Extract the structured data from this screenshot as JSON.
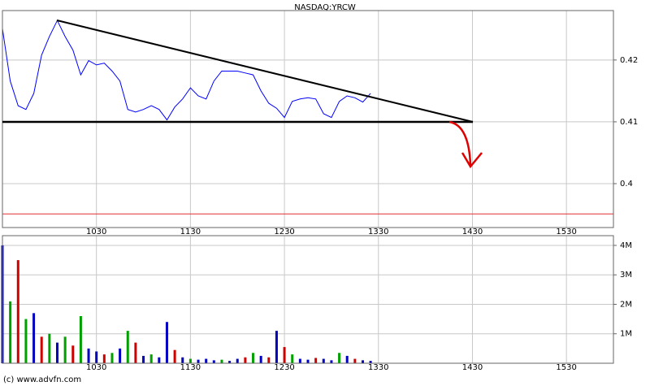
{
  "chart_data": [
    {
      "type": "line",
      "title": "NASDAQ:YRCW",
      "color": "#0000ff",
      "x": [
        570,
        575,
        580,
        585,
        590,
        595,
        600,
        605,
        610,
        615,
        620,
        625,
        630,
        635,
        640,
        645,
        650,
        655,
        660,
        665,
        670,
        675,
        680,
        685,
        690,
        695,
        700,
        705,
        710,
        715,
        720,
        725,
        730,
        735,
        740,
        745,
        750,
        755,
        760,
        765,
        770,
        775,
        780,
        785,
        790,
        795,
        800,
        805
      ],
      "values": [
        0.4251,
        0.4166,
        0.4126,
        0.412,
        0.4146,
        0.4208,
        0.4238,
        0.4264,
        0.4238,
        0.4216,
        0.4176,
        0.4199,
        0.4192,
        0.4195,
        0.4182,
        0.4166,
        0.412,
        0.4116,
        0.412,
        0.4126,
        0.412,
        0.4103,
        0.4124,
        0.4137,
        0.4155,
        0.4142,
        0.4137,
        0.4166,
        0.4182,
        0.4182,
        0.4182,
        0.4179,
        0.4176,
        0.415,
        0.413,
        0.4122,
        0.4107,
        0.4133,
        0.4137,
        0.4139,
        0.4137,
        0.4113,
        0.4107,
        0.4133,
        0.4142,
        0.4139,
        0.4132,
        0.4146
      ],
      "reference_line": {
        "value": 0.3951,
        "color": "#e03030"
      },
      "xlim": [
        570,
        960
      ],
      "xticks": [
        {
          "value": 630,
          "label": "1030"
        },
        {
          "value": 690,
          "label": "1130"
        },
        {
          "value": 750,
          "label": "1230"
        },
        {
          "value": 810,
          "label": "1330"
        },
        {
          "value": 870,
          "label": "1430"
        },
        {
          "value": 930,
          "label": "1530"
        }
      ],
      "ylim": [
        0.3929,
        0.428
      ],
      "yticks": [
        0.4,
        0.41,
        0.42
      ],
      "grid": true
    },
    {
      "type": "bar",
      "x": [
        570,
        575,
        580,
        585,
        590,
        595,
        600,
        605,
        610,
        615,
        620,
        625,
        630,
        635,
        640,
        645,
        650,
        655,
        660,
        665,
        670,
        675,
        680,
        685,
        690,
        695,
        700,
        705,
        710,
        715,
        720,
        725,
        730,
        735,
        740,
        745,
        750,
        755,
        760,
        765,
        770,
        775,
        780,
        785,
        790,
        795,
        800,
        805
      ],
      "values": [
        4000000,
        2100000,
        3500000,
        1500000,
        1700000,
        900000,
        1000000,
        700000,
        900000,
        600000,
        1600000,
        500000,
        400000,
        300000,
        350000,
        500000,
        1100000,
        700000,
        250000,
        300000,
        200000,
        1400000,
        450000,
        200000,
        150000,
        120000,
        150000,
        100000,
        120000,
        80000,
        150000,
        200000,
        350000,
        250000,
        200000,
        1100000,
        550000,
        300000,
        150000,
        120000,
        180000,
        150000,
        100000,
        350000,
        250000,
        150000,
        100000,
        80000
      ],
      "colors": [
        "#0000c0",
        "#00a000",
        "#d00000",
        "#00a000",
        "#0000c0",
        "#d00000",
        "#00a000",
        "#0000c0",
        "#00a000",
        "#d00000",
        "#00a000",
        "#0000c0",
        "#0000c0",
        "#d00000",
        "#00a000",
        "#0000c0",
        "#00a000",
        "#d00000",
        "#0000c0",
        "#00a000",
        "#0000c0",
        "#0000c0",
        "#d00000",
        "#0000c0",
        "#00a000",
        "#0000c0",
        "#0000c0",
        "#0000c0",
        "#00a000",
        "#0000c0",
        "#0000c0",
        "#d00000",
        "#00a000",
        "#0000c0",
        "#d00000",
        "#0000c0",
        "#d00000",
        "#00a000",
        "#0000c0",
        "#0000c0",
        "#d00000",
        "#0000c0",
        "#0000c0",
        "#00a000",
        "#0000c0",
        "#d00000",
        "#0000c0",
        "#0000c0"
      ],
      "xlim": [
        570,
        960
      ],
      "xticks": [
        {
          "value": 630,
          "label": "1030"
        },
        {
          "value": 690,
          "label": "1130"
        },
        {
          "value": 750,
          "label": "1230"
        },
        {
          "value": 810,
          "label": "1330"
        },
        {
          "value": 870,
          "label": "1430"
        },
        {
          "value": 930,
          "label": "1530"
        }
      ],
      "ylim": [
        0,
        4330000
      ],
      "yticks": [
        {
          "value": 1000000,
          "label": "1M"
        },
        {
          "value": 2000000,
          "label": "2M"
        },
        {
          "value": 3000000,
          "label": "3M"
        },
        {
          "value": 4000000,
          "label": "4M"
        }
      ],
      "grid": true
    }
  ],
  "footer": "(c) www.advfn.com"
}
